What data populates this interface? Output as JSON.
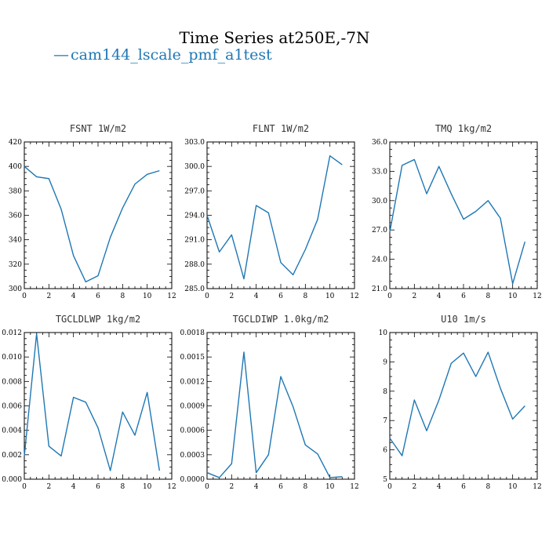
{
  "figure": {
    "title": "Time Series at250E,-7N",
    "legend": {
      "label": "cam144_lscale_pmf_a1test",
      "marker": "—",
      "color": "#1f77b4"
    }
  },
  "chart_data": [
    {
      "type": "line",
      "title": "FSNT   1W/m2",
      "x": [
        0,
        1,
        2,
        3,
        4,
        5,
        6,
        7,
        8,
        9,
        10,
        11
      ],
      "series": [
        {
          "values": [
            400,
            391.5,
            390,
            365,
            327,
            305.5,
            310.5,
            342,
            366,
            385.5,
            393.5,
            396.5
          ]
        }
      ],
      "xlim": [
        0,
        12
      ],
      "ylim": [
        300,
        420
      ],
      "xticks": [
        0,
        2,
        4,
        6,
        8,
        10,
        12
      ],
      "yticks": [
        300,
        320,
        340,
        360,
        380,
        400,
        420
      ],
      "ytick_labels": [
        "300",
        "320",
        "340",
        "360",
        "380",
        "400",
        "420"
      ]
    },
    {
      "type": "line",
      "title": "FLNT   1W/m2",
      "x": [
        0,
        1,
        2,
        3,
        4,
        5,
        6,
        7,
        8,
        9,
        10,
        11
      ],
      "series": [
        {
          "values": [
            294,
            289.5,
            291.6,
            286.2,
            295.2,
            294.3,
            288.2,
            286.7,
            289.8,
            293.5,
            301.3,
            300.2
          ]
        }
      ],
      "xlim": [
        0,
        12
      ],
      "ylim": [
        285,
        303
      ],
      "xticks": [
        0,
        2,
        4,
        6,
        8,
        10,
        12
      ],
      "yticks": [
        285,
        288,
        291,
        294,
        297,
        300,
        303
      ],
      "ytick_labels": [
        "285.0",
        "288.0",
        "291.0",
        "294.0",
        "297.0",
        "300.0",
        "303.0"
      ]
    },
    {
      "type": "line",
      "title": "TMQ   1kg/m2",
      "x": [
        0,
        1,
        2,
        3,
        4,
        5,
        6,
        7,
        8,
        9,
        10,
        11
      ],
      "series": [
        {
          "values": [
            26.8,
            33.6,
            34.2,
            30.7,
            33.5,
            30.7,
            28.1,
            28.9,
            30.0,
            28.2,
            21.5,
            25.8
          ]
        }
      ],
      "xlim": [
        0,
        12
      ],
      "ylim": [
        21,
        36
      ],
      "xticks": [
        0,
        2,
        4,
        6,
        8,
        10,
        12
      ],
      "yticks": [
        21,
        24,
        27,
        30,
        33,
        36
      ],
      "ytick_labels": [
        "21.0",
        "24.0",
        "27.0",
        "30.0",
        "33.0",
        "36.0"
      ]
    },
    {
      "type": "line",
      "title": "TGCLDLWP   1kg/m2",
      "x": [
        0,
        1,
        2,
        3,
        4,
        5,
        6,
        7,
        8,
        9,
        10,
        11
      ],
      "series": [
        {
          "values": [
            0.0019,
            0.0119,
            0.0027,
            0.0019,
            0.0067,
            0.0063,
            0.0042,
            0.0007,
            0.0055,
            0.0036,
            0.0071,
            0.0007
          ]
        }
      ],
      "xlim": [
        0,
        12
      ],
      "ylim": [
        0,
        0.012
      ],
      "xticks": [
        0,
        2,
        4,
        6,
        8,
        10,
        12
      ],
      "yticks": [
        0,
        0.002,
        0.004,
        0.006,
        0.008,
        0.01,
        0.012
      ],
      "ytick_labels": [
        "0.000",
        "0.002",
        "0.004",
        "0.006",
        "0.008",
        "0.010",
        "0.012"
      ]
    },
    {
      "type": "line",
      "title": "TGCLDIWP   1.0kg/m2",
      "x": [
        0,
        1,
        2,
        3,
        4,
        5,
        6,
        7,
        8,
        9,
        10,
        11
      ],
      "series": [
        {
          "values": [
            8e-05,
            2e-05,
            0.00019,
            0.00156,
            8e-05,
            0.0003,
            0.00126,
            0.00089,
            0.00042,
            0.00031,
            2e-05,
            3e-05
          ]
        }
      ],
      "xlim": [
        0,
        12
      ],
      "ylim": [
        0,
        0.0018
      ],
      "xticks": [
        0,
        2,
        4,
        6,
        8,
        10,
        12
      ],
      "yticks": [
        0,
        0.0003,
        0.0006,
        0.0009,
        0.0012,
        0.0015,
        0.0018
      ],
      "ytick_labels": [
        "0.0000",
        "0.0003",
        "0.0006",
        "0.0009",
        "0.0012",
        "0.0015",
        "0.0018"
      ]
    },
    {
      "type": "line",
      "title": "U10   1m/s",
      "x": [
        0,
        1,
        2,
        3,
        4,
        5,
        6,
        7,
        8,
        9,
        10,
        11
      ],
      "series": [
        {
          "values": [
            6.4,
            5.8,
            7.7,
            6.65,
            7.7,
            8.95,
            9.3,
            8.5,
            9.33,
            8.1,
            7.05,
            7.5
          ]
        }
      ],
      "xlim": [
        0,
        12
      ],
      "ylim": [
        5,
        10
      ],
      "xticks": [
        0,
        2,
        4,
        6,
        8,
        10,
        12
      ],
      "yticks": [
        5,
        6,
        7,
        8,
        9,
        10
      ],
      "ytick_labels": [
        "5",
        "6",
        "7",
        "8",
        "9",
        "10"
      ]
    }
  ]
}
